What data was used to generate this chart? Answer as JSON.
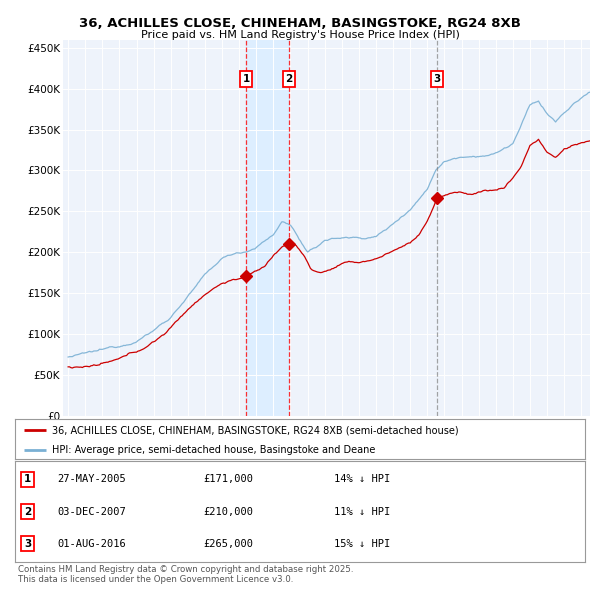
{
  "title1": "36, ACHILLES CLOSE, CHINEHAM, BASINGSTOKE, RG24 8XB",
  "title2": "Price paid vs. HM Land Registry's House Price Index (HPI)",
  "legend_red": "36, ACHILLES CLOSE, CHINEHAM, BASINGSTOKE, RG24 8XB (semi-detached house)",
  "legend_blue": "HPI: Average price, semi-detached house, Basingstoke and Deane",
  "footer1": "Contains HM Land Registry data © Crown copyright and database right 2025.",
  "footer2": "This data is licensed under the Open Government Licence v3.0.",
  "sales": [
    {
      "num": 1,
      "date": "27-MAY-2005",
      "price": 171000,
      "pct": "14%",
      "dir": "↓"
    },
    {
      "num": 2,
      "date": "03-DEC-2007",
      "price": 210000,
      "pct": "11%",
      "dir": "↓"
    },
    {
      "num": 3,
      "date": "01-AUG-2016",
      "price": 265000,
      "pct": "15%",
      "dir": "↓"
    }
  ],
  "sale_years": [
    2005.41,
    2007.92,
    2016.58
  ],
  "sale_prices": [
    171000,
    210000,
    265000
  ],
  "red_color": "#cc0000",
  "blue_color": "#7ab0d4",
  "shade_color": "#ddeeff",
  "background_color": "#eef3fb",
  "ylim": [
    0,
    460000
  ],
  "xlim_start": 1994.7,
  "xlim_end": 2025.5
}
